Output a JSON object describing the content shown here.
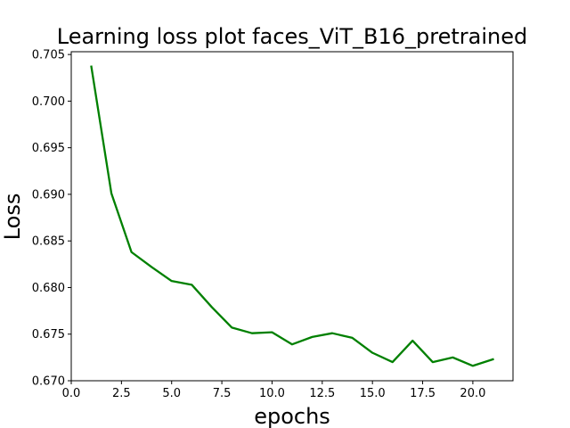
{
  "chart_data": {
    "type": "line",
    "title": "Learning loss plot faces_ViT_B16_pretrained",
    "xlabel": "epochs",
    "ylabel": "Loss",
    "xlim": [
      0,
      22
    ],
    "ylim": [
      0.67,
      0.7053
    ],
    "xticks": [
      0.0,
      2.5,
      5.0,
      7.5,
      10.0,
      12.5,
      15.0,
      17.5,
      20.0
    ],
    "xtick_labels": [
      "0.0",
      "2.5",
      "5.0",
      "7.5",
      "10.0",
      "12.5",
      "15.0",
      "17.5",
      "20.0"
    ],
    "yticks": [
      0.67,
      0.675,
      0.68,
      0.685,
      0.69,
      0.695,
      0.7,
      0.705
    ],
    "ytick_labels": [
      "0.670",
      "0.675",
      "0.680",
      "0.685",
      "0.690",
      "0.695",
      "0.700",
      "0.705"
    ],
    "grid": false,
    "series": [
      {
        "color": "#008000",
        "x": [
          1,
          2,
          3,
          4,
          5,
          6,
          7,
          8,
          9,
          10,
          11,
          12,
          13,
          14,
          15,
          16,
          17,
          18,
          19,
          20,
          21
        ],
        "y": [
          0.7037,
          0.6901,
          0.6838,
          0.6822,
          0.6807,
          0.6803,
          0.6779,
          0.6757,
          0.6751,
          0.6752,
          0.6739,
          0.6747,
          0.6751,
          0.6746,
          0.673,
          0.672,
          0.6743,
          0.672,
          0.6725,
          0.6716,
          0.6723
        ]
      }
    ]
  }
}
